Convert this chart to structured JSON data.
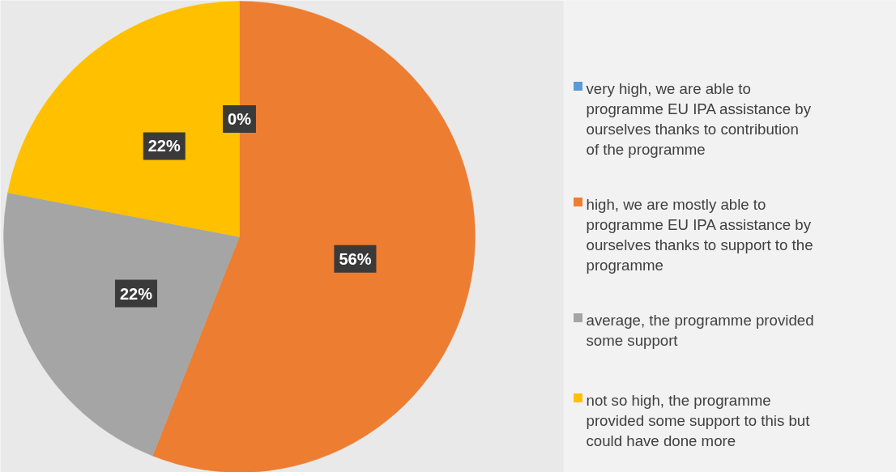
{
  "chart_data": {
    "type": "pie",
    "categories": [
      "very high, we are able to programme EU IPA assistance by ourselves thanks to contribution of the programme",
      "high, we are mostly able to programme EU IPA assistance by ourselves thanks to support to the programme",
      "average, the programme provided some support",
      "not so high, the programme provided some support to this but could have done more"
    ],
    "values": [
      0,
      56,
      22,
      22
    ],
    "colors": [
      "#5b9bd5",
      "#ed7d31",
      "#a5a5a5",
      "#ffc000"
    ],
    "value_labels": [
      "0%",
      "56%",
      "22%",
      "22%"
    ],
    "legend": "right"
  }
}
